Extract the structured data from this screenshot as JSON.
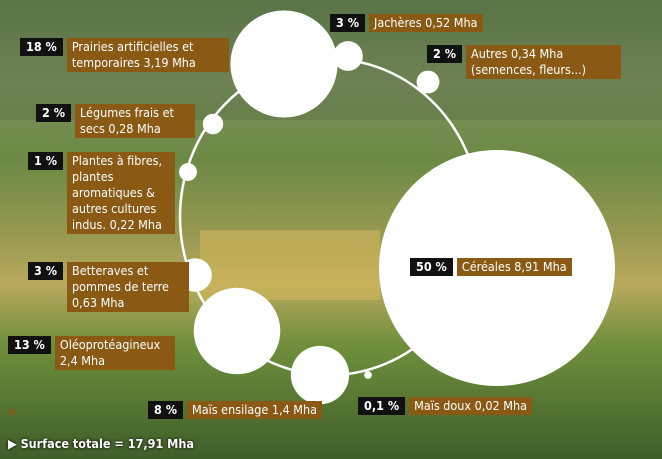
{
  "chart_data": {
    "type": "bubble",
    "categories": [
      "Jachères",
      "Autres",
      "Céréales",
      "Maïs doux",
      "Maïs ensilage",
      "Oléoprotéagineux",
      "Betteraves et pommes de terre",
      "Plantes à fibres, plantes aromatiques & autres cultures indus.",
      "Légumes frais et secs",
      "Prairies artificielles et temporaires"
    ],
    "details": [
      null,
      "(semences, fleurs...)",
      null,
      null,
      null,
      null,
      null,
      null,
      null,
      null
    ],
    "values": [
      3,
      2,
      50,
      0.1,
      8,
      13,
      3,
      1,
      2,
      18
    ],
    "value_labels": [
      "3 %",
      "2 %",
      "50 %",
      "0,1 %",
      "8 %",
      "13 %",
      "3 %",
      "1 %",
      "2 %",
      "18 %"
    ],
    "areas": [
      0.52,
      0.34,
      8.91,
      0.02,
      1.4,
      2.4,
      0.63,
      0.22,
      0.28,
      3.19
    ],
    "area_labels": [
      "0,52 Mha",
      "0,34 Mha",
      "8,91 Mha",
      "0,02 Mha",
      "1,4 Mha",
      "2,4 Mha",
      "0,63 Mha",
      "0,22 Mha",
      "0,28 Mha",
      "3,19 Mha"
    ],
    "color": "#ffffff",
    "total": "Surface totale = 17,91 Mha"
  }
}
